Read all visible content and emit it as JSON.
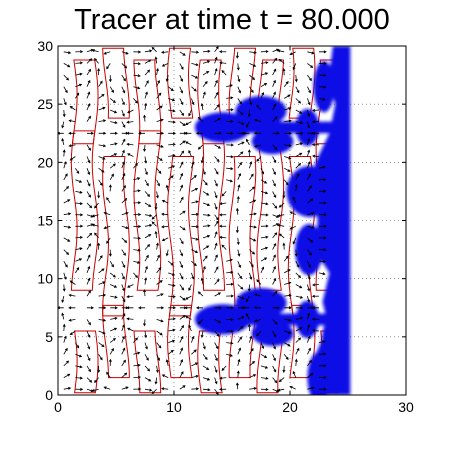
{
  "chart_data": {
    "type": "vector-field-with-contours",
    "title": "Tracer at time t = 80.000",
    "xlim": [
      0,
      30
    ],
    "ylim": [
      0,
      30
    ],
    "xticks": [
      0,
      10,
      20,
      30
    ],
    "yticks": [
      0,
      5,
      10,
      15,
      20,
      25,
      30
    ],
    "xtick_labels": [
      "0",
      "10",
      "20",
      "30"
    ],
    "ytick_labels": [
      "0",
      "5",
      "10",
      "15",
      "20",
      "25",
      "30"
    ],
    "grid": "dotted",
    "colors": {
      "tracer": "#1010e6",
      "contour": "#cc0000",
      "arrow": "#000000"
    },
    "tracer_core_x": [
      23.5,
      25.2
    ],
    "tracer_fingers": [
      {
        "y": 23.0,
        "x_from": 12.0,
        "x_to": 24.0
      },
      {
        "y": 6.5,
        "x_from": 12.0,
        "x_to": 24.0
      }
    ],
    "contour_columns_x": [
      2.3,
      5.0,
      7.7,
      10.6,
      13.2,
      15.9,
      18.3,
      21.0,
      23.4
    ],
    "vector_grid_spacing": 1.0
  }
}
